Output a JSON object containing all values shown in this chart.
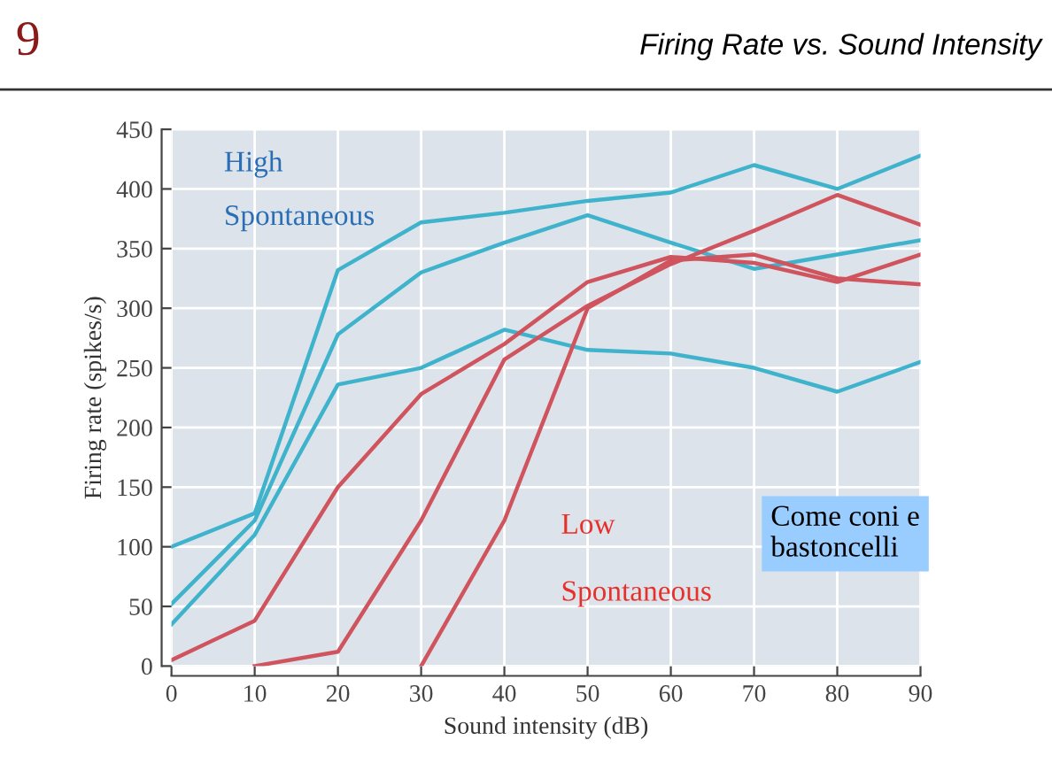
{
  "chart_data": {
    "type": "line",
    "title": "Firing Rate vs. Sound Intensity",
    "xlabel": "Sound intensity (dB)",
    "ylabel": "Firing rate (spikes/s)",
    "x": [
      0,
      10,
      20,
      30,
      40,
      50,
      60,
      70,
      80,
      90
    ],
    "series": [
      {
        "color": "#3fb3cc",
        "values": [
          100,
          128,
          332,
          372,
          380,
          390,
          397,
          420,
          400,
          428
        ]
      },
      {
        "color": "#3fb3cc",
        "values": [
          52,
          122,
          278,
          330,
          355,
          378,
          355,
          333,
          345,
          357
        ]
      },
      {
        "color": "#3fb3cc",
        "values": [
          35,
          110,
          236,
          250,
          282,
          265,
          262,
          250,
          230,
          255
        ]
      },
      {
        "color": "#d0545e",
        "values": [
          5,
          38,
          150,
          228,
          270,
          322,
          343,
          338,
          322,
          345
        ]
      },
      {
        "color": "#d0545e",
        "values": [
          null,
          0,
          12,
          122,
          257,
          302,
          337,
          365,
          395,
          370
        ]
      },
      {
        "color": "#d0545e",
        "values": [
          null,
          null,
          null,
          0,
          122,
          300,
          340,
          345,
          325,
          320
        ]
      }
    ],
    "xlim": [
      0,
      90
    ],
    "xticks": [
      0,
      10,
      20,
      30,
      40,
      50,
      60,
      70,
      80,
      90
    ],
    "ylim": [
      0,
      450
    ],
    "yticks": [
      0,
      50,
      100,
      150,
      200,
      250,
      300,
      350,
      400,
      450
    ],
    "grid": true,
    "marker": "none",
    "line_style": "solid",
    "legend": false,
    "annotations": [
      "9",
      "High",
      "Spontaneous",
      "Low",
      "Spontaneous",
      "Come coni e bastoncelli"
    ]
  }
}
